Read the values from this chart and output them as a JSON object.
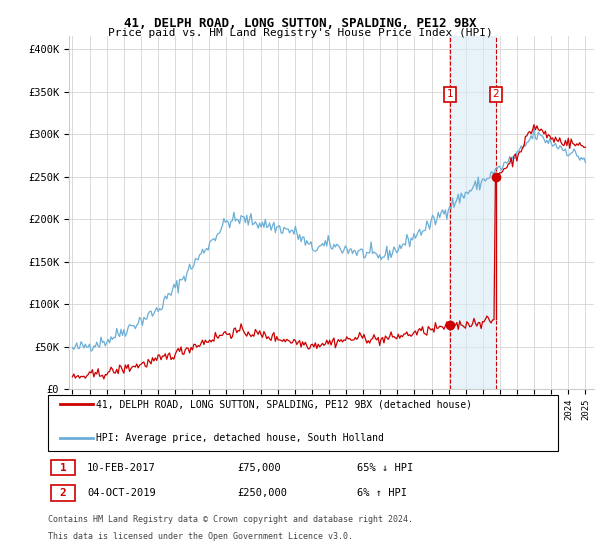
{
  "title1": "41, DELPH ROAD, LONG SUTTON, SPALDING, PE12 9BX",
  "title2": "Price paid vs. HM Land Registry's House Price Index (HPI)",
  "ylabel_ticks": [
    "£0",
    "£50K",
    "£100K",
    "£150K",
    "£200K",
    "£250K",
    "£300K",
    "£350K",
    "£400K"
  ],
  "ytick_values": [
    0,
    50000,
    100000,
    150000,
    200000,
    250000,
    300000,
    350000,
    400000
  ],
  "ylim": [
    0,
    415000
  ],
  "xlim_start": 1994.8,
  "xlim_end": 2025.5,
  "xtick_years": [
    1995,
    1996,
    1997,
    1998,
    1999,
    2000,
    2001,
    2002,
    2003,
    2004,
    2005,
    2006,
    2007,
    2008,
    2009,
    2010,
    2011,
    2012,
    2013,
    2014,
    2015,
    2016,
    2017,
    2018,
    2019,
    2020,
    2021,
    2022,
    2023,
    2024,
    2025
  ],
  "sale1_x": 2017.1,
  "sale1_y": 75000,
  "sale2_x": 2019.75,
  "sale2_y": 250000,
  "sale_color": "#cc0000",
  "hpi_color": "#6baed6",
  "annotation_box_color": "#cc0000",
  "shade_color": "#daeaf5",
  "legend_label1": "41, DELPH ROAD, LONG SUTTON, SPALDING, PE12 9BX (detached house)",
  "legend_label2": "HPI: Average price, detached house, South Holland",
  "annotation1_label": "1",
  "annotation1_date": "10-FEB-2017",
  "annotation1_price": "£75,000",
  "annotation1_hpi": "65% ↓ HPI",
  "annotation2_label": "2",
  "annotation2_date": "04-OCT-2019",
  "annotation2_price": "£250,000",
  "annotation2_hpi": "6% ↑ HPI",
  "footnote1": "Contains HM Land Registry data © Crown copyright and database right 2024.",
  "footnote2": "This data is licensed under the Open Government Licence v3.0.",
  "background_color": "#ffffff",
  "grid_color": "#cccccc"
}
